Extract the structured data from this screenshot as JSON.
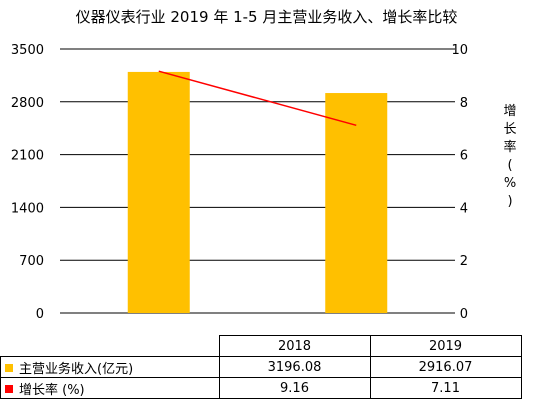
{
  "chart_data": {
    "type": "bar+line",
    "title": "仪器仪表行业 2019 年 1-5 月主营业务收入、增长率比较",
    "categories": [
      "2018",
      "2019"
    ],
    "series": [
      {
        "name": "主营业务收入(亿元)",
        "type": "bar",
        "axis": "left",
        "color": "#FFC000",
        "values": [
          3196.08,
          2916.07
        ]
      },
      {
        "name": "增长率 (%)",
        "type": "line",
        "axis": "right",
        "color": "#FF0000",
        "values": [
          9.16,
          7.11
        ]
      }
    ],
    "y_left": {
      "min": 0,
      "max": 3500,
      "ticks": [
        "0",
        "700",
        "1400",
        "2100",
        "2800",
        "3500"
      ]
    },
    "y_right": {
      "min": 0,
      "max": 10,
      "ticks": [
        "0",
        "2",
        "4",
        "6",
        "8",
        "10"
      ],
      "label_chars": [
        "增",
        "长",
        "率",
        "(",
        "%",
        ")"
      ]
    },
    "grid": true,
    "legend": "data-table",
    "table": {
      "rows": [
        {
          "label": "主营业务收入(亿元)",
          "values": [
            "3196.08",
            "2916.07"
          ]
        },
        {
          "label": "增长率 (%)",
          "values": [
            "9.16",
            "7.11"
          ]
        }
      ]
    }
  }
}
